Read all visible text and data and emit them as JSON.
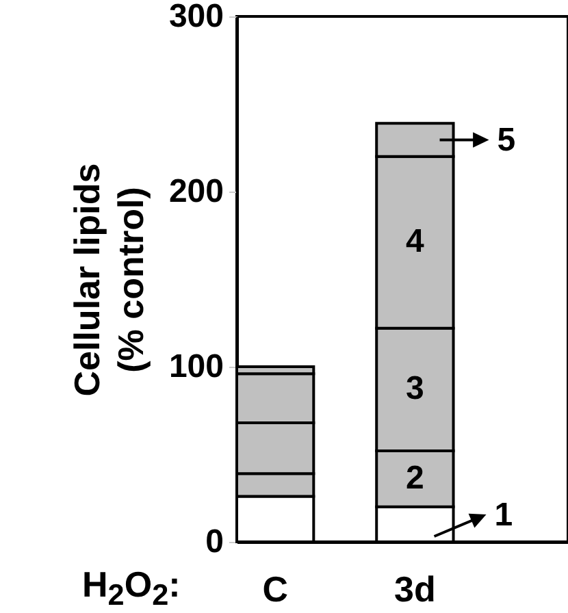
{
  "chart_data": {
    "type": "bar",
    "stacked": true,
    "ylabel": "Cellular lipids\n(% control)",
    "xlabel": "H$_{2}$O$_{2}$:",
    "categories": [
      "C",
      "3d"
    ],
    "series": [
      {
        "name": "1",
        "color": "#ffffff",
        "values": [
          26,
          20
        ]
      },
      {
        "name": "2",
        "color": "#c0c0c0",
        "values": [
          13,
          32
        ]
      },
      {
        "name": "3",
        "color": "#c0c0c0",
        "values": [
          29,
          70
        ]
      },
      {
        "name": "4",
        "color": "#c0c0c0",
        "values": [
          28,
          98
        ]
      },
      {
        "name": "5",
        "color": "#c0c0c0",
        "values": [
          4,
          19
        ]
      }
    ],
    "ylim": [
      0,
      300
    ],
    "yticks": [
      0,
      100,
      200,
      300
    ],
    "legend": "right",
    "grid": false
  }
}
